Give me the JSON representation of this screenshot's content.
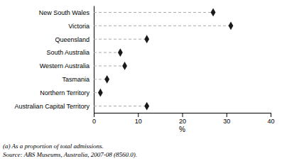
{
  "chart_data": {
    "type": "dot",
    "orientation": "horizontal",
    "categories": [
      "Australian Capital Territory",
      "Northern Territory",
      "Tasmania",
      "Western Australia",
      "South Australia",
      "Queensland",
      "Victoria",
      "New South Wales"
    ],
    "values": [
      12.0,
      1.5,
      3.0,
      7.0,
      6.0,
      12.0,
      31.0,
      27.0
    ],
    "color": "#1a1a1a",
    "marker": "diamond",
    "line_style": "dashed",
    "xlim": [
      0,
      40
    ],
    "xticks": [
      0,
      10,
      20,
      30,
      40
    ],
    "xlabel": "%",
    "annotations": [
      "(a) As a proportion of total admissions.",
      "Source: ABS Museums, Australia, 2007-08 (8560.0)."
    ]
  }
}
